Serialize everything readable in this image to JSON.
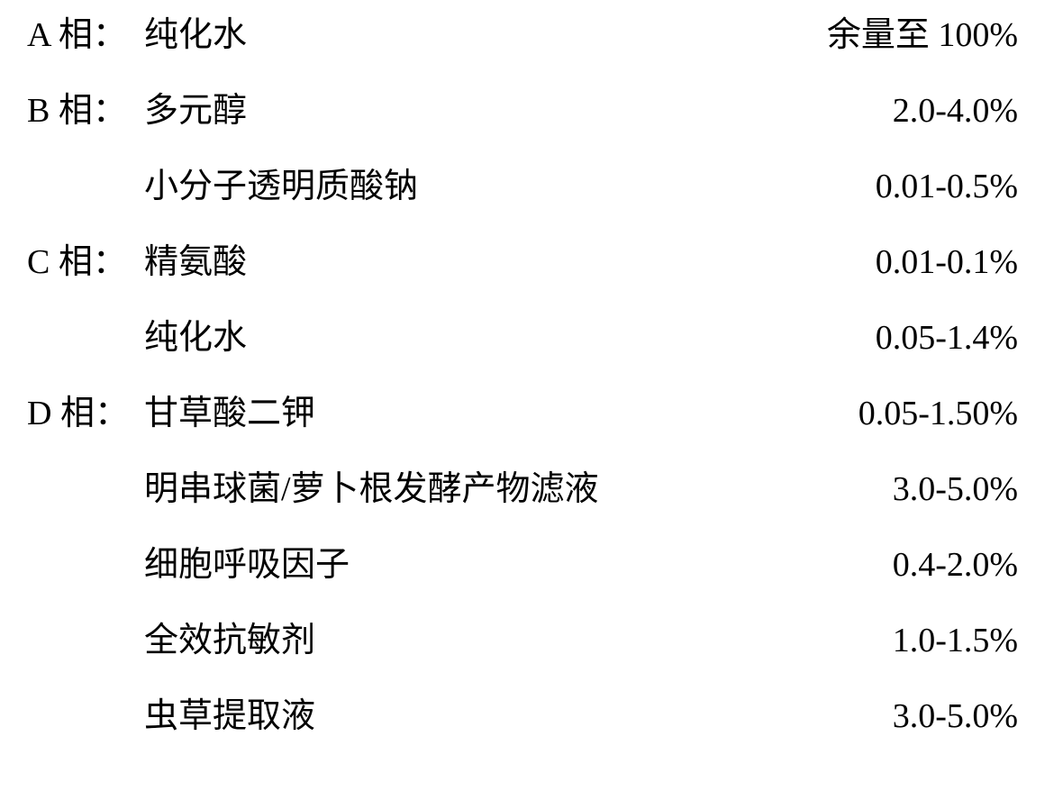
{
  "rows": [
    {
      "phase": "A 相：",
      "ingredient": "纯化水",
      "value": "余量至 100%"
    },
    {
      "phase": "B 相：",
      "ingredient": "多元醇",
      "value": "2.0-4.0%"
    },
    {
      "phase": "",
      "ingredient": "小分子透明质酸钠",
      "value": "0.01-0.5%"
    },
    {
      "phase": "C 相：",
      "ingredient": "精氨酸",
      "value": "0.01-0.1%"
    },
    {
      "phase": "",
      "ingredient": "纯化水",
      "value": "0.05-1.4%"
    },
    {
      "phase": "D 相：",
      "ingredient": "甘草酸二钾",
      "value": "0.05-1.50%"
    },
    {
      "phase": "",
      "ingredient": "明串球菌/萝卜根发酵产物滤液",
      "value": "3.0-5.0%"
    },
    {
      "phase": "",
      "ingredient": "细胞呼吸因子",
      "value": "0.4-2.0%"
    },
    {
      "phase": "",
      "ingredient": "全效抗敏剂",
      "value": "1.0-1.5%"
    },
    {
      "phase": "",
      "ingredient": "虫草提取液",
      "value": "3.0-5.0%"
    }
  ]
}
